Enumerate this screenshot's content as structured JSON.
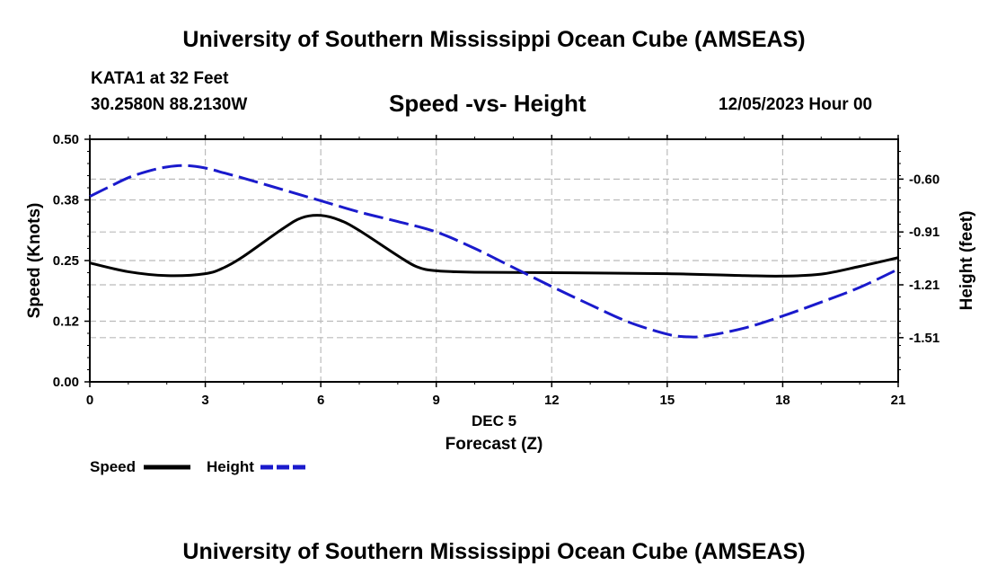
{
  "page": {
    "title_top": "University of Southern Mississippi Ocean Cube (AMSEAS)",
    "title_bottom": "University of Southern Mississippi Ocean Cube (AMSEAS)",
    "station": "KATA1 at 32 Feet",
    "coords": "30.2580N  88.2130W",
    "datetime": "12/05/2023 Hour 00"
  },
  "colors": {
    "speed": "#000000",
    "height": "#1a1acc",
    "grid": "#bbbbbb"
  },
  "chart_data": {
    "type": "line",
    "title": "Speed -vs- Height",
    "xlabel": "Forecast (Z)",
    "xdate": "DEC 5",
    "ylabel": "Speed (Knots)",
    "y2label": "Height (feet)",
    "xlim": [
      0,
      21
    ],
    "ylim": [
      0,
      0.5
    ],
    "y2lim": [
      -1.77,
      -0.37
    ],
    "xticks": [
      0,
      3,
      6,
      9,
      12,
      15,
      18,
      21
    ],
    "xtick_labels": [
      "0",
      "3",
      "6",
      "9",
      "12",
      "15",
      "18",
      "21"
    ],
    "yticks": [
      0.0,
      0.125,
      0.25,
      0.375,
      0.5
    ],
    "ytick_labels": [
      "0.00",
      "0.12",
      "0.25",
      "0.38",
      "0.50"
    ],
    "y2ticks": [
      -0.6,
      -0.905,
      -1.21,
      -1.515
    ],
    "y2tick_labels": [
      "-0.60",
      "-0.91",
      "-1.21",
      "-1.51"
    ],
    "grid": true,
    "legend_position": "bottom-left",
    "series": [
      {
        "name": "Speed",
        "axis": "left",
        "style": "solid",
        "x": [
          0,
          1,
          2,
          3,
          3.5,
          4,
          5,
          5.5,
          6,
          6.5,
          7,
          8,
          8.5,
          9,
          10,
          12,
          15,
          17,
          18,
          19,
          20,
          21
        ],
        "values": [
          0.245,
          0.227,
          0.219,
          0.223,
          0.236,
          0.259,
          0.315,
          0.338,
          0.343,
          0.333,
          0.312,
          0.26,
          0.237,
          0.229,
          0.226,
          0.225,
          0.223,
          0.219,
          0.218,
          0.222,
          0.238,
          0.256
        ]
      },
      {
        "name": "Height",
        "axis": "right",
        "style": "dashed",
        "x": [
          0,
          0.5,
          1,
          1.5,
          2,
          2.5,
          3,
          3.5,
          4,
          5,
          6,
          7,
          8,
          9,
          10,
          11,
          12,
          13,
          14,
          15,
          15.5,
          16,
          17,
          18,
          19,
          20,
          21
        ],
        "values": [
          -0.7,
          -0.645,
          -0.592,
          -0.555,
          -0.53,
          -0.522,
          -0.536,
          -0.565,
          -0.595,
          -0.66,
          -0.725,
          -0.79,
          -0.845,
          -0.905,
          -1.0,
          -1.11,
          -1.22,
          -1.325,
          -1.425,
          -1.495,
          -1.51,
          -1.505,
          -1.46,
          -1.39,
          -1.31,
          -1.225,
          -1.12
        ]
      }
    ]
  }
}
